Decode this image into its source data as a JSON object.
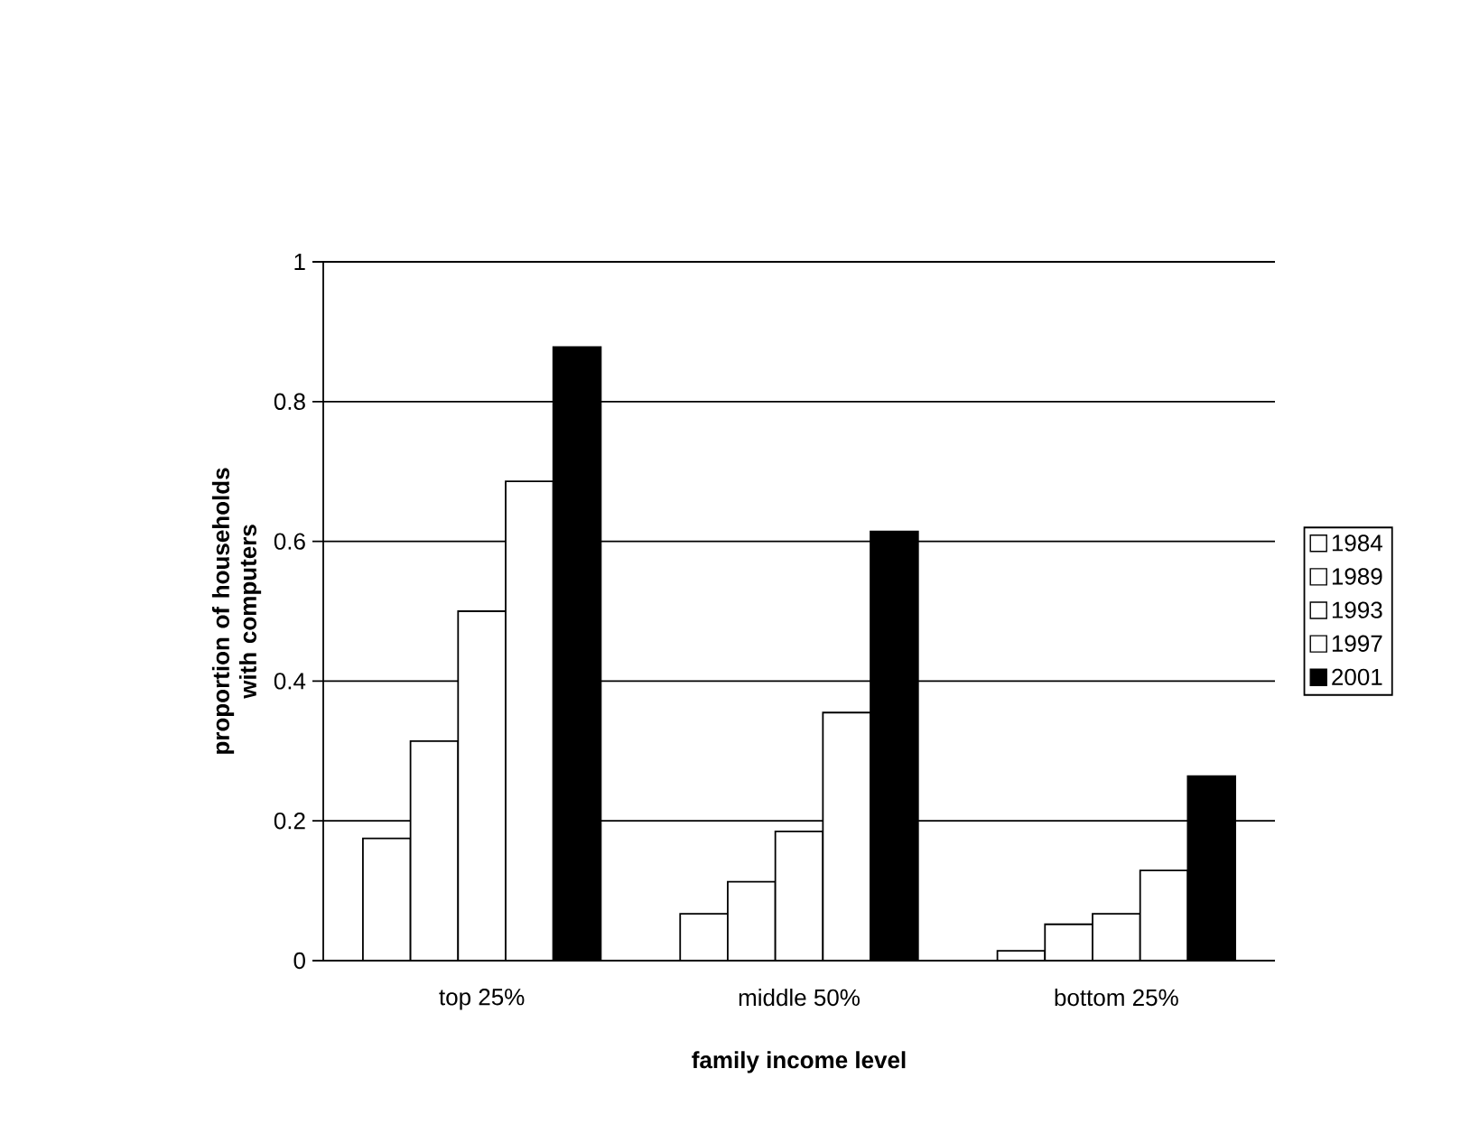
{
  "chart_data": {
    "type": "bar",
    "xlabel": "family income level",
    "ylabel": "proportion of households with computers",
    "categories": [
      "top 25%",
      "middle 50%",
      "bottom 25%"
    ],
    "series": [
      {
        "name": "1984",
        "color": "#ffffff",
        "values": [
          0.175,
          0.067,
          0.014
        ]
      },
      {
        "name": "1989",
        "color": "#ffffff",
        "values": [
          0.314,
          0.113,
          0.052
        ]
      },
      {
        "name": "1993",
        "color": "#ffffff",
        "values": [
          0.5,
          0.185,
          0.067
        ]
      },
      {
        "name": "1997",
        "color": "#ffffff",
        "values": [
          0.686,
          0.355,
          0.129
        ]
      },
      {
        "name": "2001",
        "color": "#000000",
        "values": [
          0.878,
          0.614,
          0.264
        ]
      }
    ],
    "ylim": [
      0,
      1
    ],
    "yticks": [
      0,
      0.2,
      0.4,
      0.6,
      0.8,
      1
    ],
    "grid": "y",
    "legend": "right"
  }
}
